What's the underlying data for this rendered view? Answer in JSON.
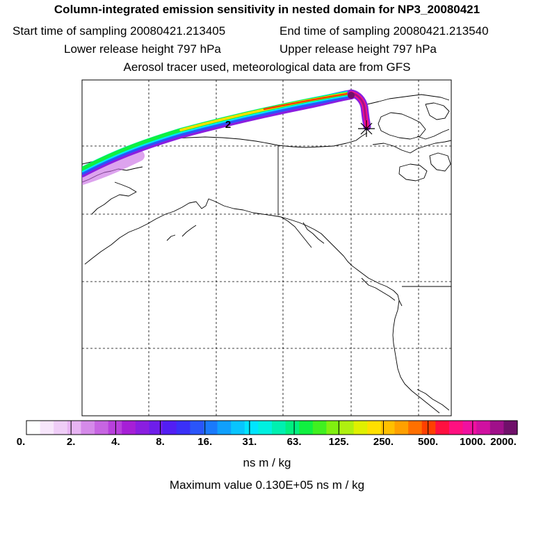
{
  "title": "Column-integrated emission sensitivity in nested domain for NP3_20080421",
  "start_label": "Start time of sampling 20080421.213405",
  "end_label": "End time of sampling 20080421.213540",
  "lower_label": "Lower release height  797 hPa",
  "upper_label": "Upper release height  797 hPa",
  "tracer_label": "Aerosol tracer used, meteorological data are from GFS",
  "trajectory_marker": "2",
  "colorbar": {
    "ticks": [
      "0.",
      "2.",
      "4.",
      "8.",
      "16.",
      "31.",
      "63.",
      "125.",
      "250.",
      "500.",
      "1000.",
      "2000."
    ],
    "units": "ns m / kg",
    "colors": [
      "#ffffff",
      "#f7e6fb",
      "#efcdf7",
      "#e7b4f3",
      "#d58ae9",
      "#c765e2",
      "#b840dc",
      "#a61fd6",
      "#8a1ee0",
      "#6e1eea",
      "#521ef4",
      "#3a30f8",
      "#2a55fa",
      "#1a7afc",
      "#10a0fd",
      "#08c5fe",
      "#00e5ff",
      "#00f0e0",
      "#00f0b0",
      "#00f080",
      "#10f040",
      "#40f020",
      "#80f010",
      "#b0f010",
      "#e0f000",
      "#ffe000",
      "#ffc000",
      "#ffa000",
      "#ff7000",
      "#ff4000",
      "#ff1040",
      "#ff1080",
      "#f010a0",
      "#d010a0",
      "#a0108a",
      "#70106a"
    ]
  },
  "max_value_label": "Maximum value  0.130E+05 ns m / kg"
}
